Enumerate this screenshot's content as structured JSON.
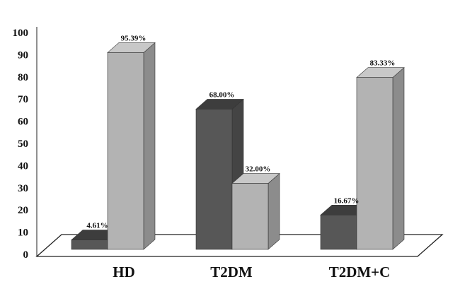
{
  "chart_data": {
    "type": "bar",
    "categories": [
      "HD",
      "T2DM",
      "T2DM+C"
    ],
    "series": [
      {
        "values": [
          4.61,
          68.0,
          16.67
        ],
        "labels": [
          "4.61%",
          "68.00%",
          "16.67%"
        ],
        "color": "#575757"
      },
      {
        "values": [
          95.39,
          32.0,
          83.33
        ],
        "labels": [
          "95.39%",
          "32.00%",
          "83.33%"
        ],
        "color": "#b3b3b3"
      }
    ],
    "yticks": [
      "0",
      "10",
      "20",
      "30",
      "40",
      "50",
      "60",
      "70",
      "80",
      "90",
      "100"
    ],
    "ylim": [
      0,
      100
    ],
    "grid": false,
    "style": "3d-column"
  }
}
